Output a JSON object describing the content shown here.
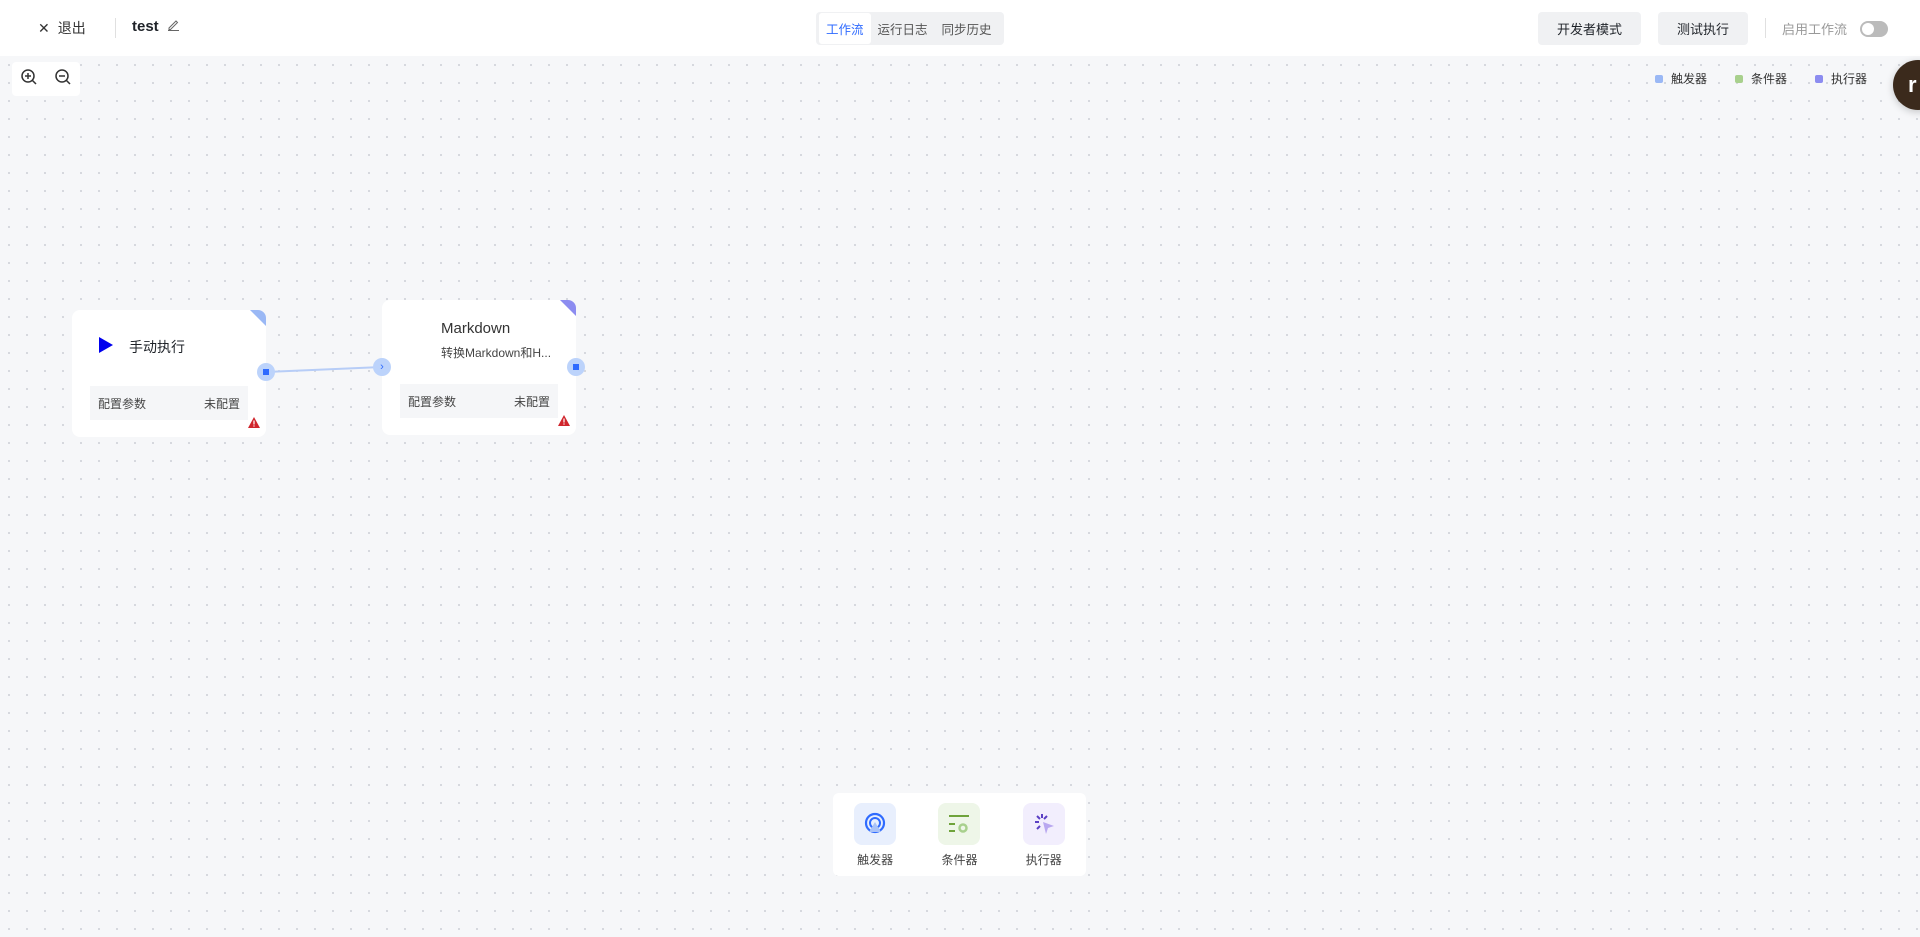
{
  "header": {
    "exit_label": "退出",
    "title": "test",
    "tabs": [
      {
        "label": "工作流",
        "active": true
      },
      {
        "label": "运行日志"
      },
      {
        "label": "同步历史"
      }
    ],
    "dev_mode_label": "开发者模式",
    "test_run_label": "测试执行",
    "enable_label": "启用工作流",
    "enabled": false
  },
  "legend": [
    {
      "label": "触发器",
      "color": "#9ab8f5"
    },
    {
      "label": "条件器",
      "color": "#a8d08d"
    },
    {
      "label": "执行器",
      "color": "#8c8cf0"
    }
  ],
  "avatar": {
    "letter": "r"
  },
  "nodes": [
    {
      "title": "手动执行",
      "icon": "play-icon",
      "params_label": "配置参数",
      "status": "未配置",
      "corner_color": "#9ab8f5"
    },
    {
      "title": "Markdown",
      "subtitle": "转换Markdown和H...",
      "params_label": "配置参数",
      "status": "未配置",
      "corner_color": "#8c8cf0"
    }
  ],
  "palette": [
    {
      "label": "触发器",
      "icon": "trigger-icon"
    },
    {
      "label": "条件器",
      "icon": "condition-icon"
    },
    {
      "label": "执行器",
      "icon": "executor-icon"
    }
  ]
}
